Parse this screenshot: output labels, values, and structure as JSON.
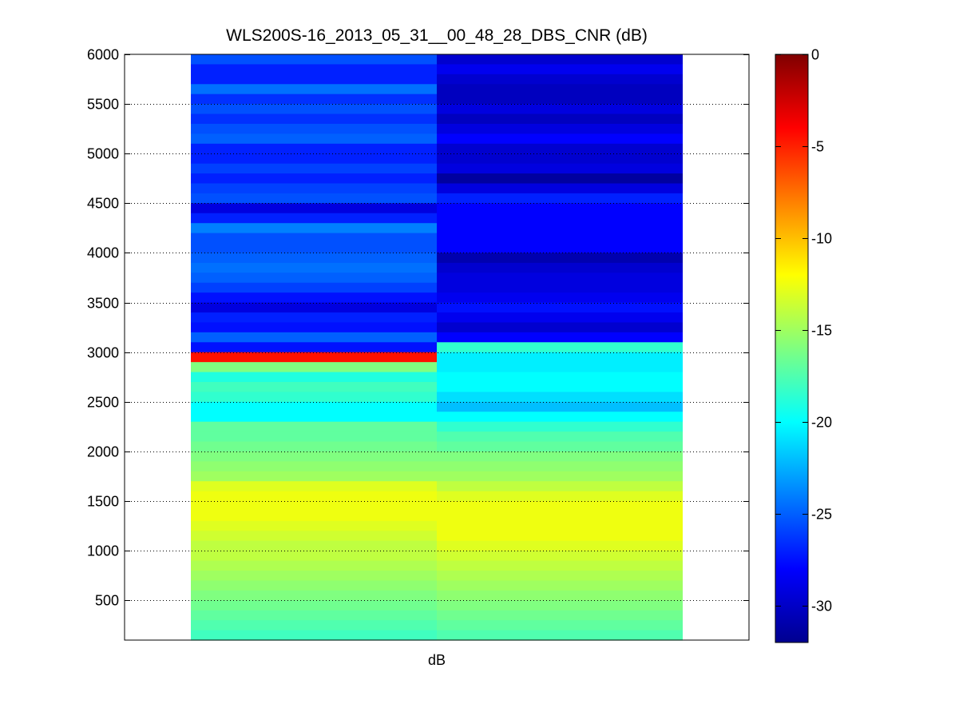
{
  "chart_data": {
    "type": "heatmap",
    "title": "WLS200S-16_2013_05_31__00_48_28_DBS_CNR (dB)",
    "xlabel": "dB",
    "ylabel": "",
    "ylim": [
      100,
      6000
    ],
    "yticks": [
      500,
      1000,
      1500,
      2000,
      2500,
      3000,
      3500,
      4000,
      4500,
      5000,
      5500,
      6000
    ],
    "grid": "y-dotted",
    "colormap": "jet",
    "colorbar": {
      "range": [
        -32,
        0
      ],
      "ticks": [
        0,
        -5,
        -10,
        -15,
        -20,
        -25,
        -30
      ],
      "placement": "right"
    },
    "bin_height": 100,
    "y_bins_top": [
      6000,
      5900,
      5800,
      5700,
      5600,
      5500,
      5400,
      5300,
      5200,
      5100,
      5000,
      4900,
      4800,
      4700,
      4600,
      4500,
      4400,
      4300,
      4200,
      4100,
      4000,
      3900,
      3800,
      3700,
      3600,
      3500,
      3400,
      3300,
      3200,
      3100,
      3000,
      2900,
      2800,
      2700,
      2600,
      2500,
      2400,
      2300,
      2200,
      2100,
      2000,
      1900,
      1800,
      1700,
      1600,
      1500,
      1400,
      1300,
      1200,
      1100,
      1000,
      900,
      800,
      700,
      600,
      500,
      400,
      300,
      200
    ],
    "columns": [
      {
        "name": "",
        "values": [
          -25.5,
          -27.0,
          -27.0,
          -24.5,
          -26.5,
          -25.5,
          -26.5,
          -25.5,
          -25.0,
          -27.0,
          -27.0,
          -26.0,
          -27.0,
          -26.0,
          -25.5,
          -29.0,
          -27.0,
          -24.0,
          -25.5,
          -25.5,
          -25.0,
          -24.5,
          -25.0,
          -26.0,
          -27.5,
          -29.0,
          -27.0,
          -27.5,
          -25.0,
          -27.5,
          -4.5,
          -16.0,
          -19.0,
          -18.0,
          -18.5,
          -20.0,
          -20.0,
          -17.0,
          -17.0,
          -16.5,
          -16.0,
          -15.5,
          -15.0,
          -13.0,
          -12.5,
          -12.5,
          -12.5,
          -13.0,
          -13.5,
          -14.0,
          -14.0,
          -14.5,
          -15.0,
          -15.5,
          -16.0,
          -16.5,
          -17.0,
          -17.5,
          -18.0
        ]
      },
      {
        "name": "",
        "values": [
          -29.5,
          -28.5,
          -29.5,
          -30.0,
          -30.0,
          -29.0,
          -30.0,
          -29.0,
          -28.0,
          -29.5,
          -29.5,
          -29.0,
          -31.0,
          -29.0,
          -27.0,
          -28.0,
          -28.0,
          -28.0,
          -28.0,
          -28.0,
          -30.5,
          -29.5,
          -29.0,
          -29.0,
          -28.5,
          -27.5,
          -28.5,
          -29.5,
          -28.0,
          -18.5,
          -20.5,
          -20.5,
          -20.0,
          -20.0,
          -21.0,
          -22.0,
          -20.0,
          -18.5,
          -17.5,
          -17.0,
          -16.0,
          -15.5,
          -15.0,
          -14.0,
          -13.0,
          -12.5,
          -12.5,
          -12.5,
          -12.5,
          -13.0,
          -13.5,
          -14.0,
          -14.5,
          -15.0,
          -15.5,
          -16.0,
          -16.5,
          -17.0,
          -17.5
        ]
      }
    ]
  }
}
